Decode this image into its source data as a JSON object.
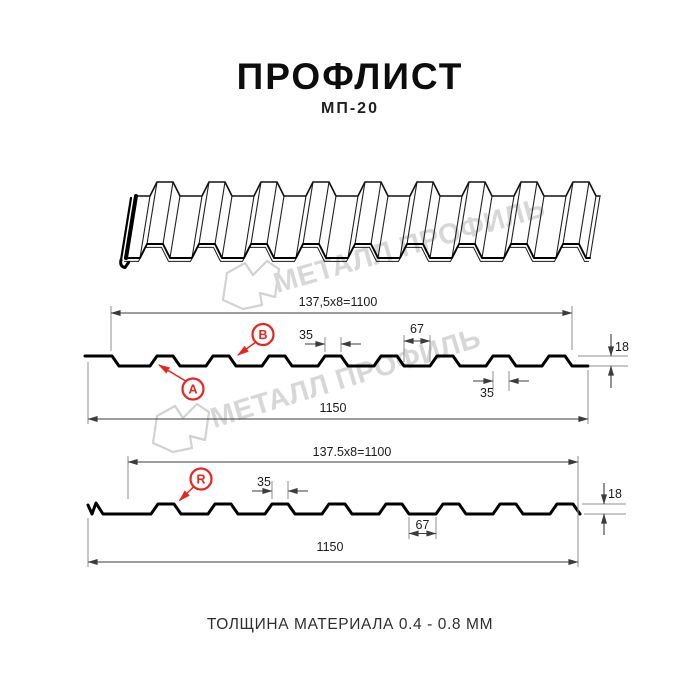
{
  "header": {
    "title": "ПРОФЛИСТ",
    "subtitle": "МП-20"
  },
  "watermark": {
    "text": "МЕТАЛЛ ПРОФИЛЬ",
    "color": "#d7d7d7"
  },
  "profile1": {
    "top_dim": "137,5x8=1100",
    "rib_top_width": "35",
    "valley_width": "67",
    "height": "18",
    "rib_bottom_width": "35",
    "total_width": "1150",
    "label_a": "A",
    "label_b": "B"
  },
  "profile2": {
    "top_dim": "137.5x8=1100",
    "rib_top_width": "35",
    "valley_width": "67",
    "height": "18",
    "total_width": "1150",
    "label_r": "R"
  },
  "footer": {
    "text": "ТОЛЩИНА МАТЕРИАЛА 0.4 - 0.8 ММ"
  },
  "colors": {
    "accent_red": "#e8251e",
    "dim_line": "#3c3c3c",
    "profile_line": "#000000",
    "watermark_gray": "#d7d7d7"
  }
}
